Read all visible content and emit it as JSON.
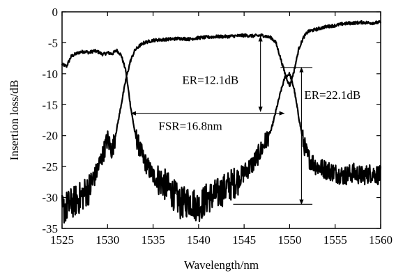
{
  "chart_data": {
    "type": "line",
    "title": "",
    "xlabel": "Wavelength/nm",
    "ylabel": "Insertion loss/dB",
    "xlim": [
      1525,
      1560
    ],
    "ylim": [
      -35,
      0
    ],
    "xticks": [
      1525,
      1530,
      1535,
      1540,
      1545,
      1550,
      1555,
      1560
    ],
    "yticks": [
      0,
      -5,
      -10,
      -15,
      -20,
      -25,
      -30,
      -35
    ],
    "grid": false,
    "legend": "none",
    "series": [
      {
        "x": [
          1525,
          1525.5,
          1526,
          1526.5,
          1527,
          1527.5,
          1528,
          1528.5,
          1529,
          1529.5,
          1530,
          1530.5,
          1531,
          1531.5,
          1532,
          1532.5,
          1533,
          1533.5,
          1534,
          1535,
          1536,
          1537,
          1538,
          1539,
          1540,
          1541,
          1542,
          1543,
          1544,
          1545,
          1546,
          1547,
          1548,
          1548.5,
          1549,
          1549.5,
          1550,
          1550.5,
          1551,
          1551.5,
          1552,
          1553,
          1554,
          1555,
          1556,
          1557,
          1558,
          1559,
          1560
        ],
        "y": [
          -8.5,
          -8.8,
          -7.2,
          -6.8,
          -6.5,
          -6.4,
          -6.6,
          -6.3,
          -6.5,
          -6.9,
          -6.6,
          -6.8,
          -6.2,
          -7.0,
          -9.5,
          -15.0,
          -19.5,
          -22.0,
          -24.0,
          -26.5,
          -27.5,
          -29.0,
          -31.0,
          -30.5,
          -31.5,
          -30.0,
          -29.5,
          -28.5,
          -27.5,
          -26.0,
          -24.5,
          -22.0,
          -19.0,
          -16.0,
          -13.0,
          -10.5,
          -10.0,
          -12.5,
          -17.0,
          -21.0,
          -23.5,
          -25.0,
          -25.5,
          -26.0,
          -26.5,
          -26.0,
          -26.5,
          -26.0,
          -26.5
        ]
      },
      {
        "x": [
          1525,
          1526,
          1527,
          1528,
          1528.5,
          1529,
          1529.5,
          1530,
          1530.5,
          1531,
          1531.5,
          1532,
          1532.5,
          1533,
          1533.5,
          1534,
          1534.5,
          1535,
          1536,
          1537,
          1538,
          1539,
          1540,
          1541,
          1542,
          1543,
          1544,
          1545,
          1546,
          1547,
          1548,
          1548.5,
          1549,
          1549.5,
          1550,
          1550.5,
          1551,
          1551.5,
          1552,
          1553,
          1554,
          1555,
          1556,
          1557,
          1558,
          1559,
          1560
        ],
        "y": [
          -32.0,
          -31.0,
          -30.0,
          -28.5,
          -27.0,
          -25.0,
          -23.0,
          -20.5,
          -22.5,
          -19.0,
          -15.0,
          -11.0,
          -8.0,
          -6.2,
          -5.5,
          -5.0,
          -4.8,
          -4.6,
          -4.5,
          -4.4,
          -4.3,
          -4.4,
          -4.2,
          -4.1,
          -4.0,
          -4.0,
          -3.9,
          -3.8,
          -3.9,
          -3.8,
          -4.2,
          -5.0,
          -7.5,
          -10.0,
          -12.0,
          -9.5,
          -6.0,
          -4.2,
          -3.2,
          -2.8,
          -2.4,
          -2.2,
          -1.9,
          -1.8,
          -1.7,
          -1.8,
          -1.7
        ]
      }
    ],
    "annotations": [
      {
        "text": "ER=12.1dB"
      },
      {
        "text": "ER=22.1dB"
      },
      {
        "text": "FSR=16.8nm"
      }
    ],
    "annotation_geometry": {
      "er1": {
        "x": 1546.8,
        "y_top": -4.0,
        "y_bottom": -16.1,
        "label_x": 1538.2,
        "label_y": -11.0
      },
      "er2": {
        "x": 1551.3,
        "y_top": -9.0,
        "y_bottom": -31.1,
        "ref_x_start": 1549.0,
        "ref_x_end": 1552.5,
        "label_x": 1551.6,
        "label_y": -13.4
      },
      "fsr": {
        "y": -16.4,
        "x_start": 1532.6,
        "x_end": 1549.4,
        "label_x": 1535.6,
        "label_y": -18.4
      },
      "bottom_ref": {
        "y": -31.1,
        "x_start": 1543.8,
        "x_end": 1552.5
      }
    }
  }
}
